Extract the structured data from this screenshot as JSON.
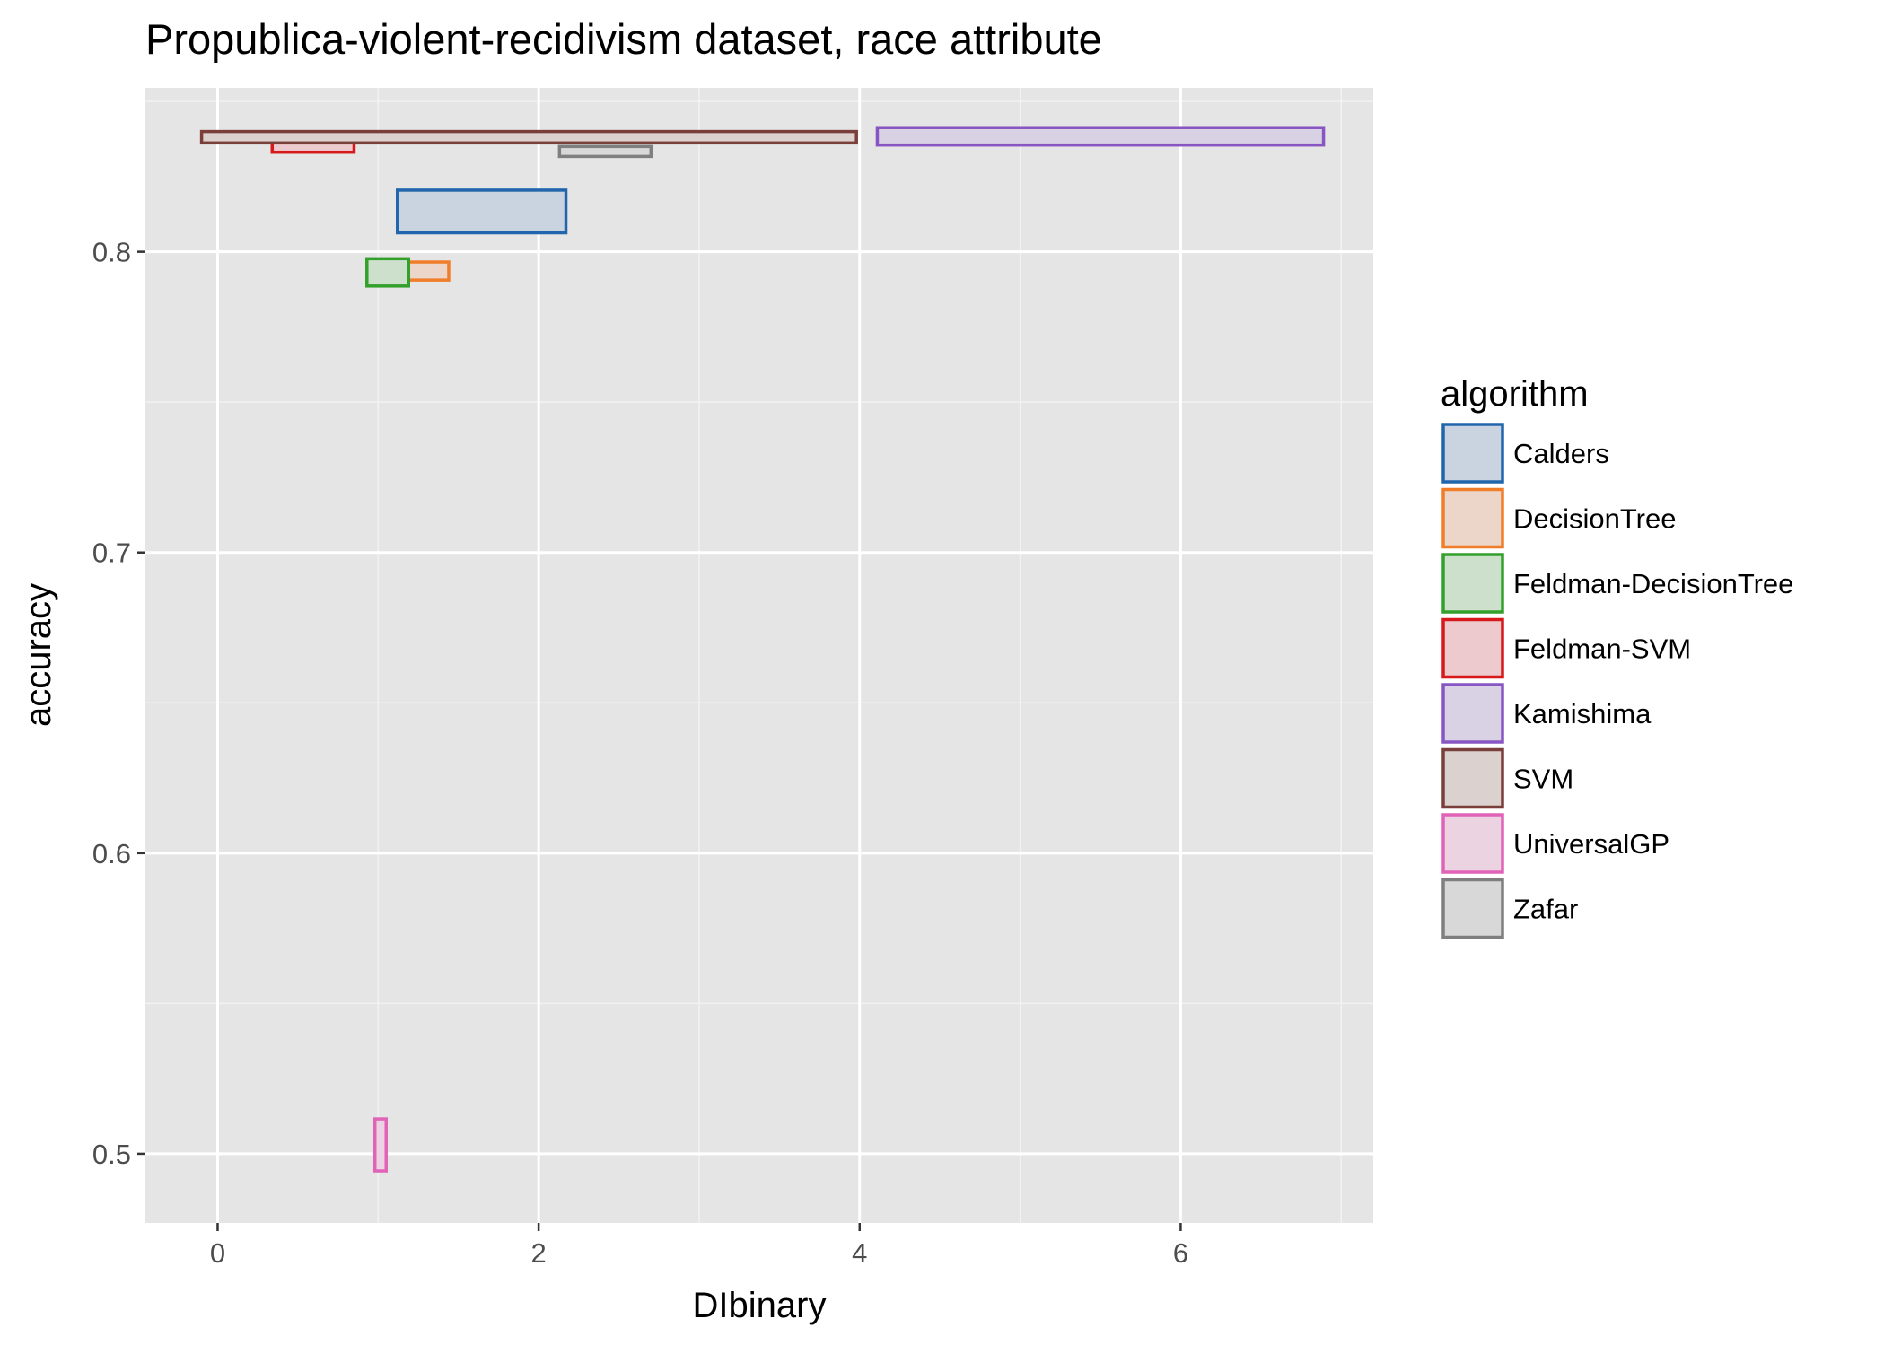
{
  "chart_data": {
    "type": "rect",
    "title": "Propublica-violent-recidivism dataset, race attribute",
    "xlabel": "DIbinary",
    "ylabel": "accuracy",
    "xlim": [
      -0.45,
      7.2
    ],
    "ylim": [
      0.477,
      0.8545
    ],
    "x_ticks": [
      0,
      2,
      4,
      6
    ],
    "x_tick_labels": [
      "0",
      "2",
      "4",
      "6"
    ],
    "y_ticks": [
      0.5,
      0.6,
      0.7,
      0.8
    ],
    "y_tick_labels": [
      "0.5",
      "0.6",
      "0.7",
      "0.8"
    ],
    "grid": true,
    "legend_title": "algorithm",
    "legend_position": "right",
    "series": [
      {
        "name": "Calders",
        "color": "#2166ac",
        "fill": "#c9d4e0",
        "xmin": 1.12,
        "xmax": 2.17,
        "ymin": 0.8063,
        "ymax": 0.8205
      },
      {
        "name": "DecisionTree",
        "color": "#f07d2a",
        "fill": "#ecd6ca",
        "xmin": 1.15,
        "xmax": 1.44,
        "ymin": 0.7906,
        "ymax": 0.7966
      },
      {
        "name": "Feldman-DecisionTree",
        "color": "#33a02c",
        "fill": "#cde0cc",
        "xmin": 0.93,
        "xmax": 1.19,
        "ymin": 0.7886,
        "ymax": 0.7977
      },
      {
        "name": "Feldman-SVM",
        "color": "#d7191c",
        "fill": "#eccacd",
        "xmin": 0.34,
        "xmax": 0.85,
        "ymin": 0.8331,
        "ymax": 0.8368
      },
      {
        "name": "Kamishima",
        "color": "#8856c2",
        "fill": "#d9d2e4",
        "xmin": 4.11,
        "xmax": 6.89,
        "ymin": 0.8355,
        "ymax": 0.8413
      },
      {
        "name": "SVM",
        "color": "#7a3f3a",
        "fill": "#dbd2d0",
        "xmin": -0.1,
        "xmax": 3.98,
        "ymin": 0.8362,
        "ymax": 0.84
      },
      {
        "name": "UniversalGP",
        "color": "#e163b8",
        "fill": "#ecd3e1",
        "xmin": 0.98,
        "xmax": 1.05,
        "ymin": 0.4943,
        "ymax": 0.5116
      },
      {
        "name": "Zafar",
        "color": "#7f7f7f",
        "fill": "#d8d8d8",
        "xmin": 2.13,
        "xmax": 2.7,
        "ymin": 0.8317,
        "ymax": 0.835
      }
    ]
  }
}
